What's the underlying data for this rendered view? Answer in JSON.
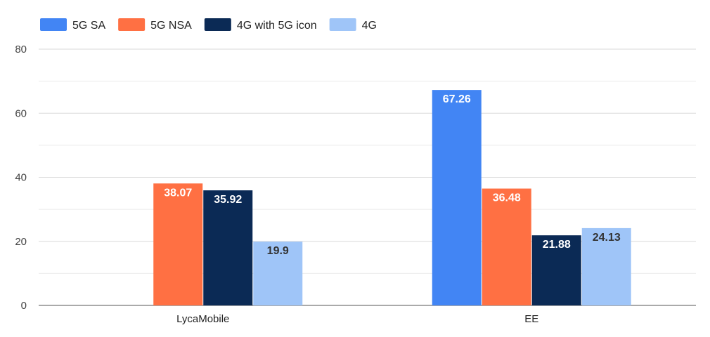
{
  "chart_data": {
    "type": "bar",
    "categories": [
      "LycaMobile",
      "EE"
    ],
    "series": [
      {
        "name": "5G SA",
        "color": "#4285f4",
        "label_color": "#ffffff",
        "values": [
          null,
          67.26
        ]
      },
      {
        "name": "5G NSA",
        "color": "#ff7043",
        "label_color": "#ffffff",
        "values": [
          38.07,
          36.48
        ]
      },
      {
        "name": "4G with 5G icon",
        "color": "#0b2a55",
        "label_color": "#ffffff",
        "values": [
          35.92,
          21.88
        ]
      },
      {
        "name": "4G",
        "color": "#9fc5f8",
        "label_color": "#333333",
        "values": [
          19.9,
          24.13
        ]
      }
    ],
    "ylim": [
      0,
      80
    ],
    "yticks": [
      0,
      20,
      40,
      60,
      80
    ],
    "minor_grid": [
      10,
      30,
      50,
      70
    ],
    "grid": true,
    "legend_position": "top-left",
    "title": "",
    "xlabel": "",
    "ylabel": ""
  }
}
